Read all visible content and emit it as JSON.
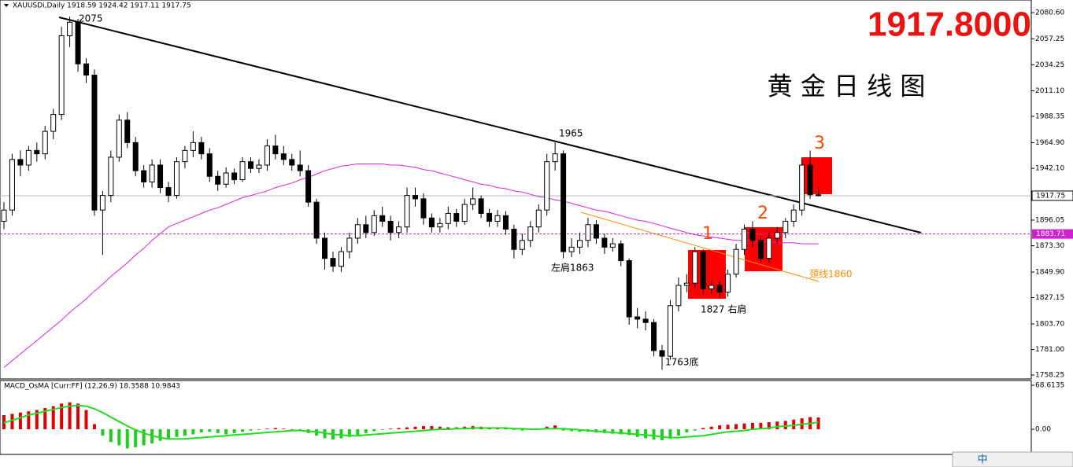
{
  "chart_data": {
    "type": "candlestick",
    "header": "XAUUSDi,Daily  1918.59 1924.42 1917.11 1917.75",
    "big_price": "1917.8000",
    "title": "黄 金 日 线 图",
    "ylim": [
      1754.8,
      2091.8
    ],
    "yticks": [
      {
        "value": 2080.6,
        "label": "2080.60"
      },
      {
        "value": 2057.25,
        "label": "2057.25"
      },
      {
        "value": 2034.25,
        "label": "2034.25"
      },
      {
        "value": 2011.1,
        "label": "2011.10"
      },
      {
        "value": 1988.35,
        "label": "1988.35"
      },
      {
        "value": 1964.9,
        "label": "1964.90"
      },
      {
        "value": 1942.1,
        "label": "1942.10"
      },
      {
        "value": 1896.05,
        "label": "1896.05"
      },
      {
        "value": 1873.3,
        "label": "1873.30"
      },
      {
        "value": 1849.9,
        "label": "1849.90"
      },
      {
        "value": 1827.15,
        "label": "1827.15"
      },
      {
        "value": 1803.7,
        "label": "1803.70"
      },
      {
        "value": 1781,
        "label": "1781.00"
      },
      {
        "value": 1758.25,
        "label": "1758.25"
      }
    ],
    "up_color": "#ffffff",
    "down_color": "#000000",
    "ohlc": [
      [
        1895,
        1912,
        1888,
        1905
      ],
      [
        1905,
        1955,
        1900,
        1950
      ],
      [
        1950,
        1958,
        1935,
        1945
      ],
      [
        1945,
        1962,
        1940,
        1958
      ],
      [
        1958,
        1965,
        1948,
        1955
      ],
      [
        1955,
        1980,
        1950,
        1975
      ],
      [
        1975,
        1995,
        1968,
        1990
      ],
      [
        1990,
        2068,
        1985,
        2060
      ],
      [
        2060,
        2077,
        2050,
        2072
      ],
      [
        2072,
        2075,
        2028,
        2035
      ],
      [
        2035,
        2040,
        2018,
        2025
      ],
      [
        2025,
        2030,
        1900,
        1905
      ],
      [
        1905,
        1922,
        1865,
        1918
      ],
      [
        1918,
        1958,
        1912,
        1952
      ],
      [
        1952,
        1990,
        1948,
        1985
      ],
      [
        1985,
        1992,
        1960,
        1965
      ],
      [
        1965,
        1970,
        1935,
        1940
      ],
      [
        1940,
        1945,
        1925,
        1930
      ],
      [
        1930,
        1950,
        1925,
        1945
      ],
      [
        1945,
        1950,
        1920,
        1925
      ],
      [
        1925,
        1930,
        1912,
        1918
      ],
      [
        1918,
        1952,
        1915,
        1948
      ],
      [
        1948,
        1962,
        1942,
        1958
      ],
      [
        1958,
        1975,
        1952,
        1965
      ],
      [
        1965,
        1970,
        1950,
        1955
      ],
      [
        1955,
        1960,
        1930,
        1935
      ],
      [
        1935,
        1940,
        1922,
        1928
      ],
      [
        1928,
        1943,
        1925,
        1938
      ],
      [
        1938,
        1942,
        1928,
        1932
      ],
      [
        1932,
        1952,
        1930,
        1948
      ],
      [
        1948,
        1952,
        1938,
        1942
      ],
      [
        1942,
        1950,
        1938,
        1945
      ],
      [
        1945,
        1968,
        1940,
        1962
      ],
      [
        1962,
        1972,
        1950,
        1955
      ],
      [
        1955,
        1962,
        1945,
        1950
      ],
      [
        1950,
        1955,
        1940,
        1945
      ],
      [
        1945,
        1958,
        1935,
        1940
      ],
      [
        1940,
        1945,
        1908,
        1912
      ],
      [
        1912,
        1915,
        1875,
        1880
      ],
      [
        1880,
        1885,
        1852,
        1862
      ],
      [
        1862,
        1868,
        1850,
        1855
      ],
      [
        1855,
        1872,
        1850,
        1868
      ],
      [
        1868,
        1885,
        1862,
        1880
      ],
      [
        1880,
        1898,
        1875,
        1892
      ],
      [
        1892,
        1900,
        1880,
        1885
      ],
      [
        1885,
        1905,
        1882,
        1900
      ],
      [
        1900,
        1908,
        1890,
        1895
      ],
      [
        1895,
        1900,
        1878,
        1885
      ],
      [
        1885,
        1895,
        1880,
        1890
      ],
      [
        1890,
        1925,
        1885,
        1918
      ],
      [
        1918,
        1925,
        1908,
        1915
      ],
      [
        1915,
        1920,
        1892,
        1898
      ],
      [
        1898,
        1902,
        1885,
        1890
      ],
      [
        1890,
        1898,
        1885,
        1893
      ],
      [
        1893,
        1908,
        1888,
        1902
      ],
      [
        1902,
        1906,
        1890,
        1895
      ],
      [
        1895,
        1915,
        1892,
        1910
      ],
      [
        1910,
        1925,
        1905,
        1915
      ],
      [
        1915,
        1918,
        1898,
        1902
      ],
      [
        1902,
        1906,
        1890,
        1895
      ],
      [
        1895,
        1905,
        1890,
        1900
      ],
      [
        1900,
        1904,
        1883,
        1888
      ],
      [
        1888,
        1892,
        1862,
        1870
      ],
      [
        1870,
        1884,
        1865,
        1878
      ],
      [
        1878,
        1895,
        1872,
        1890
      ],
      [
        1890,
        1910,
        1885,
        1905
      ],
      [
        1905,
        1955,
        1900,
        1948
      ],
      [
        1948,
        1965,
        1940,
        1955
      ],
      [
        1955,
        1958,
        1862,
        1868
      ],
      [
        1868,
        1880,
        1863,
        1872
      ],
      [
        1872,
        1885,
        1866,
        1878
      ],
      [
        1878,
        1898,
        1872,
        1892
      ],
      [
        1892,
        1896,
        1875,
        1880
      ],
      [
        1880,
        1884,
        1866,
        1872
      ],
      [
        1872,
        1880,
        1868,
        1875
      ],
      [
        1875,
        1878,
        1855,
        1860
      ],
      [
        1860,
        1862,
        1803,
        1810
      ],
      [
        1810,
        1818,
        1800,
        1808
      ],
      [
        1808,
        1815,
        1798,
        1805
      ],
      [
        1805,
        1808,
        1775,
        1780
      ],
      [
        1780,
        1785,
        1763,
        1775
      ],
      [
        1775,
        1825,
        1772,
        1820
      ],
      [
        1820,
        1845,
        1815,
        1838
      ],
      [
        1838,
        1848,
        1832,
        1840
      ],
      [
        1840,
        1872,
        1836,
        1868
      ],
      [
        1868,
        1870,
        1830,
        1835
      ],
      [
        1835,
        1842,
        1830,
        1838
      ],
      [
        1838,
        1842,
        1828,
        1832
      ],
      [
        1832,
        1852,
        1828,
        1848
      ],
      [
        1848,
        1875,
        1845,
        1870
      ],
      [
        1870,
        1892,
        1865,
        1888
      ],
      [
        1888,
        1895,
        1872,
        1878
      ],
      [
        1878,
        1882,
        1858,
        1862
      ],
      [
        1862,
        1885,
        1858,
        1880
      ],
      [
        1880,
        1890,
        1875,
        1885
      ],
      [
        1885,
        1898,
        1880,
        1895
      ],
      [
        1895,
        1910,
        1890,
        1905
      ],
      [
        1905,
        1950,
        1900,
        1945
      ],
      [
        1945,
        1958,
        1915,
        1918.59
      ],
      [
        1918.59,
        1924.42,
        1917.11,
        1917.75
      ]
    ],
    "ma": [
      1765,
      1771,
      1777,
      1783,
      1789,
      1795,
      1801,
      1807,
      1814,
      1820,
      1826,
      1833,
      1839,
      1846,
      1852,
      1858,
      1865,
      1871,
      1878,
      1884,
      1890,
      1893,
      1896,
      1899,
      1902,
      1905,
      1907,
      1910,
      1913,
      1916,
      1918,
      1920,
      1922,
      1925,
      1927,
      1929,
      1932,
      1934,
      1937,
      1940,
      1942,
      1944,
      1945,
      1946,
      1946,
      1946,
      1946,
      1945,
      1945,
      1944,
      1943,
      1941,
      1940,
      1938,
      1936,
      1934,
      1932,
      1930,
      1928,
      1927,
      1925,
      1924,
      1922,
      1921,
      1919,
      1917,
      1916,
      1914,
      1913,
      1911,
      1909,
      1907,
      1905,
      1904,
      1902,
      1900,
      1898,
      1896,
      1895,
      1893,
      1891,
      1889,
      1887,
      1885,
      1883,
      1882,
      1881,
      1880,
      1879,
      1878,
      1878,
      1878,
      1877,
      1877,
      1876,
      1876,
      1876,
      1875,
      1875,
      1875
    ],
    "ma_color": "#e020e0",
    "price_line": 1917.75,
    "alert_line": 1883.71,
    "annotations": [
      "2075",
      "1965",
      "左肩1863",
      "1827 右肩",
      "1763底",
      "颈线1860",
      "1",
      "2",
      "3"
    ],
    "macd": {
      "label": "MACD_OsMA [Curr:FF] (12,26,9) 18.3588 10.9843",
      "ylim": [
        -39.2,
        75.96
      ],
      "yticks": [
        68.6135,
        {
          "value": 0,
          "label": "0.00"
        }
      ],
      "up_color": "#e00000",
      "down_color": "#22cc22",
      "signal_color": "#22dd22",
      "values": [
        22,
        24,
        26,
        28,
        30,
        33,
        36,
        40,
        42,
        40,
        30,
        8,
        -10,
        -20,
        -25,
        -30,
        -28,
        -25,
        -22,
        -18,
        -15,
        -12,
        -10,
        -8,
        -5,
        -4,
        -6,
        -8,
        -6,
        -4,
        -2,
        -1,
        1,
        2,
        1,
        0,
        -2,
        -6,
        -10,
        -14,
        -16,
        -14,
        -12,
        -9,
        -6,
        -3,
        -1,
        1,
        2,
        3,
        4,
        5,
        5,
        4,
        3,
        3,
        4,
        5,
        4,
        3,
        2,
        1,
        -1,
        -2,
        -1,
        1,
        4,
        6,
        -2,
        -3,
        -4,
        -4,
        -5,
        -6,
        -7,
        -8,
        -9,
        -12,
        -14,
        -16,
        -17,
        -15,
        -10,
        -5,
        -2,
        2,
        4,
        6,
        7,
        8,
        9,
        10,
        10,
        11,
        12,
        13,
        15,
        17,
        19,
        18.3588
      ],
      "signal": [
        10,
        14,
        18,
        22,
        25,
        28,
        31,
        34,
        36,
        37,
        36,
        32,
        26,
        19,
        12,
        5,
        -1,
        -6,
        -10,
        -13,
        -15,
        -15,
        -15,
        -14,
        -13,
        -12,
        -11,
        -10,
        -9,
        -8,
        -7,
        -6,
        -5,
        -4,
        -3,
        -2,
        -2,
        -3,
        -4,
        -6,
        -8,
        -9,
        -10,
        -10,
        -9,
        -8,
        -7,
        -6,
        -5,
        -4,
        -3,
        -2,
        -1,
        0,
        0,
        1,
        1,
        2,
        2,
        2,
        2,
        2,
        1,
        1,
        0,
        0,
        1,
        1,
        1,
        0,
        -1,
        -2,
        -3,
        -4,
        -5,
        -6,
        -7,
        -8,
        -9,
        -10,
        -12,
        -13,
        -13,
        -12,
        -11,
        -10,
        -8,
        -6,
        -4,
        -3,
        -2,
        0,
        1,
        2,
        4,
        5,
        6,
        8,
        9,
        10.9843
      ]
    },
    "toolbar": "中"
  }
}
